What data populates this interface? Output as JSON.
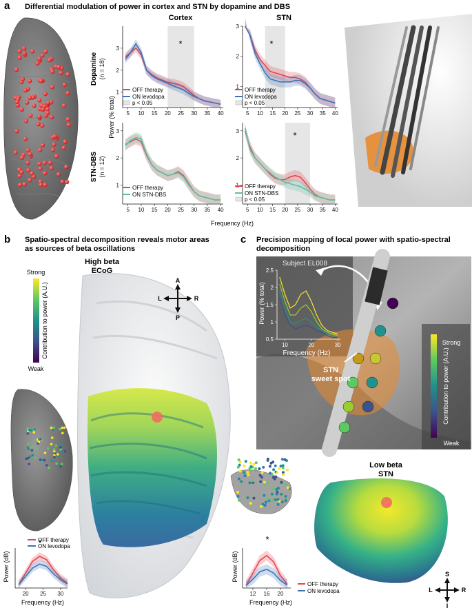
{
  "panel_a": {
    "letter": "a",
    "title": "Differential modulation of power in cortex and STN by dopamine and DBS",
    "col_cortex": "Cortex",
    "col_stn": "STN",
    "row1_label": "Dopamine",
    "row1_n": "(n = 18)",
    "row2_label": "STN-DBS",
    "row2_n": "(n = 12)",
    "ylabel": "Power (% total)",
    "xlabel": "Frequency (Hz)",
    "star": "*",
    "legend_dopa": [
      "OFF therapy",
      "ON levodopa",
      "p < 0.05"
    ],
    "legend_dbs": [
      "OFF therapy",
      "ON STN-DBS",
      "p < 0.05"
    ]
  },
  "panel_b": {
    "letter": "b",
    "title_line1": "Spatio-spectral decomposition reveals motor areas",
    "title_line2": "as sources of beta oscillations",
    "colorbar_strong": "Strong",
    "colorbar_weak": "Weak",
    "colorbar_label": "Contribution to power (A.U.)",
    "map_title_line1": "High beta",
    "map_title_line2": "ECoG",
    "compass": {
      "a": "A",
      "p": "P",
      "l": "L",
      "r": "R"
    },
    "star": "*",
    "legend": [
      "OFF therapy",
      "ON levodopa"
    ],
    "ylabel": "Power (dB)",
    "xlabel": "Frequency (Hz)"
  },
  "panel_c": {
    "letter": "c",
    "title_line1": "Precision mapping of local power with spatio-spectral",
    "title_line2": "decomposition",
    "subject": "Subject EL008",
    "inset_ylabel": "Power (% total)",
    "inset_xlabel": "Frequency (Hz)",
    "stn_label_line1": "STN",
    "stn_label_line2": "sweet spot",
    "colorbar_strong": "Strong",
    "colorbar_weak": "Weak",
    "colorbar_label": "Contribution to power (A.U.)",
    "map_title_line1": "Low beta",
    "map_title_line2": "STN",
    "compass": {
      "s": "S",
      "i": "I",
      "l": "L",
      "r": "R"
    },
    "star": "*",
    "legend": [
      "OFF therapy",
      "ON levodopa"
    ],
    "ylabel": "Power (dB)",
    "xlabel": "Frequency (Hz)"
  },
  "colors": {
    "off": "#e8414b",
    "on_levodopa": "#3b73b9",
    "on_dbs": "#5bbfa4",
    "sig": "#e6e6e6"
  },
  "chart_data": [
    {
      "type": "line",
      "name": "Cortex Dopamine",
      "x": [
        4,
        6,
        8,
        10,
        12,
        14,
        16,
        18,
        20,
        22,
        24,
        26,
        28,
        30,
        32,
        34,
        36,
        38,
        40
      ],
      "series": [
        {
          "name": "OFF therapy",
          "values": [
            2.6,
            2.8,
            3.0,
            2.7,
            2.0,
            1.8,
            1.65,
            1.55,
            1.45,
            1.4,
            1.35,
            1.25,
            1.05,
            0.85,
            0.7,
            0.6,
            0.55,
            0.5,
            0.45
          ]
        },
        {
          "name": "ON levodopa",
          "values": [
            2.5,
            2.8,
            3.2,
            2.8,
            2.0,
            1.75,
            1.6,
            1.5,
            1.4,
            1.3,
            1.2,
            1.1,
            0.95,
            0.8,
            0.7,
            0.6,
            0.55,
            0.5,
            0.45
          ]
        }
      ],
      "ylim": [
        0.3,
        4.0
      ],
      "xticks": [
        5,
        10,
        15,
        20,
        25,
        30,
        35,
        40
      ],
      "yticks": [
        1,
        2,
        3
      ],
      "sig_range": [
        20,
        30
      ]
    },
    {
      "type": "line",
      "name": "STN Dopamine",
      "x": [
        4,
        6,
        8,
        10,
        12,
        14,
        16,
        18,
        20,
        22,
        24,
        26,
        28,
        30,
        32,
        34,
        36,
        38,
        40
      ],
      "series": [
        {
          "name": "OFF therapy",
          "values": [
            3.4,
            2.7,
            2.2,
            1.9,
            1.7,
            1.5,
            1.45,
            1.4,
            1.35,
            1.3,
            1.3,
            1.25,
            1.15,
            0.95,
            0.75,
            0.6,
            0.55,
            0.5,
            0.45
          ]
        },
        {
          "name": "ON levodopa",
          "values": [
            3.5,
            2.7,
            2.1,
            1.75,
            1.45,
            1.25,
            1.2,
            1.15,
            1.15,
            1.15,
            1.2,
            1.2,
            1.1,
            0.95,
            0.75,
            0.6,
            0.55,
            0.5,
            0.45
          ]
        }
      ],
      "ylim": [
        0.3,
        3.0
      ],
      "xticks": [
        5,
        10,
        15,
        20,
        25,
        30,
        35,
        40
      ],
      "yticks": [
        1,
        2,
        3
      ],
      "sig_range": [
        12,
        20
      ]
    },
    {
      "type": "line",
      "name": "Cortex STN-DBS",
      "x": [
        4,
        6,
        8,
        10,
        12,
        14,
        16,
        18,
        20,
        22,
        24,
        26,
        28,
        30,
        32,
        34,
        36,
        38,
        40
      ],
      "series": [
        {
          "name": "OFF therapy",
          "values": [
            2.5,
            2.6,
            2.7,
            2.6,
            2.1,
            1.75,
            1.55,
            1.45,
            1.35,
            1.4,
            1.5,
            1.35,
            1.05,
            0.75,
            0.6,
            0.55,
            0.5,
            0.45,
            0.45
          ]
        },
        {
          "name": "ON STN-DBS",
          "values": [
            2.45,
            2.65,
            2.75,
            2.7,
            2.15,
            1.75,
            1.55,
            1.45,
            1.35,
            1.4,
            1.45,
            1.3,
            1.0,
            0.75,
            0.6,
            0.55,
            0.5,
            0.45,
            0.45
          ]
        }
      ],
      "ylim": [
        0.3,
        3.3
      ],
      "xticks": [
        5,
        10,
        15,
        20,
        25,
        30,
        35,
        40
      ],
      "yticks": [
        1,
        2,
        3
      ]
    },
    {
      "type": "line",
      "name": "STN STN-DBS",
      "x": [
        4,
        6,
        8,
        10,
        12,
        14,
        16,
        18,
        20,
        22,
        24,
        26,
        28,
        30,
        32,
        34,
        36,
        38,
        40
      ],
      "series": [
        {
          "name": "OFF therapy",
          "values": [
            3.0,
            2.4,
            2.0,
            1.8,
            1.6,
            1.4,
            1.25,
            1.2,
            1.2,
            1.3,
            1.35,
            1.3,
            1.1,
            0.85,
            0.65,
            0.55,
            0.5,
            0.45,
            0.45
          ]
        },
        {
          "name": "ON STN-DBS",
          "values": [
            3.1,
            2.3,
            2.0,
            1.8,
            1.6,
            1.45,
            1.3,
            1.2,
            1.1,
            1.05,
            1.0,
            0.95,
            0.85,
            0.75,
            0.6,
            0.55,
            0.5,
            0.45,
            0.45
          ]
        }
      ],
      "ylim": [
        0.3,
        3.3
      ],
      "xticks": [
        5,
        10,
        15,
        20,
        25,
        30,
        35,
        40
      ],
      "yticks": [
        1,
        2,
        3
      ],
      "sig_range": [
        20,
        30
      ]
    },
    {
      "type": "line",
      "name": "High beta ECoG power",
      "x": [
        18,
        20,
        22,
        24,
        26,
        28,
        30,
        32
      ],
      "series": [
        {
          "name": "OFF therapy",
          "values": [
            0.1,
            0.45,
            0.8,
            0.95,
            0.85,
            0.55,
            0.3,
            0.15
          ]
        },
        {
          "name": "ON levodopa",
          "values": [
            0.1,
            0.35,
            0.6,
            0.72,
            0.65,
            0.42,
            0.25,
            0.12
          ]
        }
      ],
      "xticks": [
        20,
        25,
        30
      ]
    },
    {
      "type": "line",
      "name": "Low beta STN power",
      "x": [
        10,
        12,
        14,
        16,
        18,
        20,
        22
      ],
      "series": [
        {
          "name": "OFF therapy",
          "values": [
            0.1,
            0.6,
            1.1,
            1.3,
            1.05,
            0.5,
            0.15
          ]
        },
        {
          "name": "ON levodopa",
          "values": [
            0.1,
            0.35,
            0.65,
            0.75,
            0.6,
            0.3,
            0.12
          ]
        }
      ],
      "xticks": [
        12,
        16,
        20
      ]
    },
    {
      "type": "line",
      "name": "Subject EL008 inset",
      "x": [
        8,
        10,
        12,
        14,
        16,
        18,
        20,
        22,
        24,
        26,
        28,
        30
      ],
      "xticks": [
        10,
        20,
        30
      ],
      "yticks": [
        0.5,
        1.0,
        1.5,
        2.0,
        2.5
      ],
      "ylim": [
        0.5,
        2.5
      ],
      "series": [
        {
          "values": [
            2.3,
            1.8,
            1.4,
            1.5,
            1.8,
            1.9,
            1.6,
            1.2,
            0.9,
            0.75,
            0.7,
            0.65
          ]
        },
        {
          "values": [
            2.1,
            1.6,
            1.2,
            1.2,
            1.4,
            1.5,
            1.3,
            1.0,
            0.8,
            0.7,
            0.65,
            0.6
          ]
        },
        {
          "values": [
            1.9,
            1.4,
            1.0,
            0.95,
            1.05,
            1.1,
            1.0,
            0.85,
            0.75,
            0.65,
            0.6,
            0.55
          ]
        },
        {
          "values": [
            1.7,
            1.2,
            0.9,
            0.8,
            0.85,
            0.9,
            0.85,
            0.75,
            0.7,
            0.6,
            0.55,
            0.55
          ]
        }
      ]
    }
  ]
}
